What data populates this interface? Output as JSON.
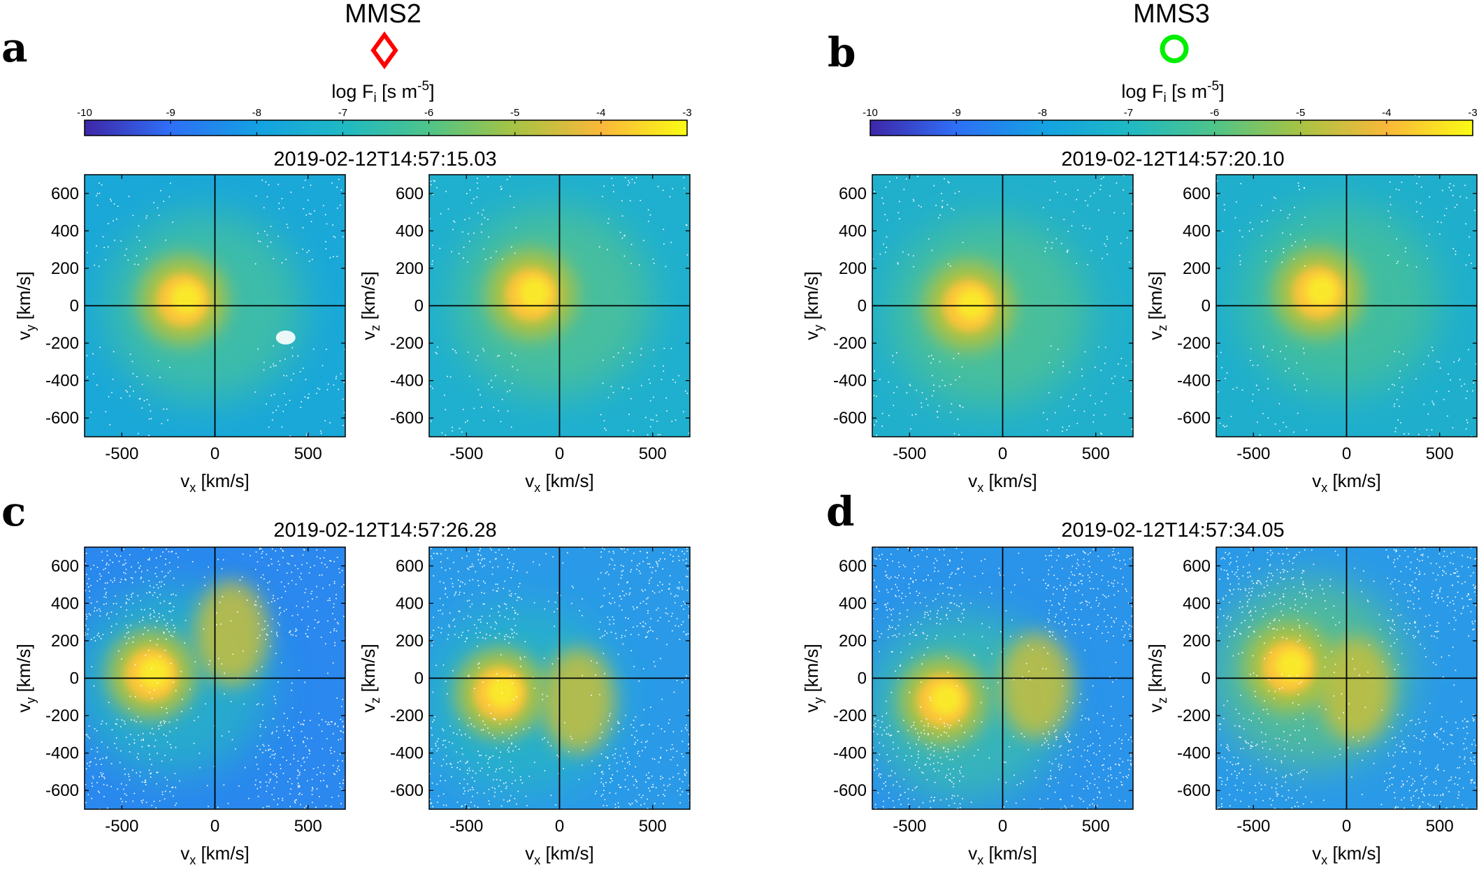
{
  "figure": {
    "panels": [
      {
        "letter": "a",
        "spacecraft": "MMS2",
        "marker": "red-diamond",
        "marker_color": "#ff0000",
        "colorbar_label": "log F",
        "colorbar_label_sub": "i",
        "colorbar_label_unit": " [s m",
        "colorbar_label_exp": "-5",
        "colorbar_label_close": "]",
        "timestamp": "2019-02-12T14:57:15.03"
      },
      {
        "letter": "b",
        "spacecraft": "MMS3",
        "marker": "green-circle",
        "marker_color": "#00ee00",
        "colorbar_label": "log F",
        "colorbar_label_sub": "i",
        "colorbar_label_unit": " [s m",
        "colorbar_label_exp": "-5",
        "colorbar_label_close": "]",
        "timestamp": "2019-02-12T14:57:20.10"
      },
      {
        "letter": "c",
        "timestamp": "2019-02-12T14:57:26.28"
      },
      {
        "letter": "d",
        "timestamp": "2019-02-12T14:57:34.05"
      }
    ],
    "colormap": [
      "#3e26a8",
      "#2f6ef6",
      "#13a2e2",
      "#2cc0a5",
      "#79c662",
      "#c5bf34",
      "#fdb93a",
      "#f9fb15"
    ]
  },
  "chart_data": [
    {
      "type": "colorbar",
      "panel": "a",
      "scale": "log",
      "range": [
        -10,
        -3
      ],
      "ticks": [
        "-10",
        "-9",
        "-8",
        "-7",
        "-6",
        "-5",
        "-4",
        "-3"
      ]
    },
    {
      "type": "colorbar",
      "panel": "b",
      "scale": "log",
      "range": [
        -10,
        -3
      ],
      "ticks": [
        "-10",
        "-9",
        "-8",
        "-7",
        "-6",
        "-5",
        "-4",
        "-3"
      ]
    },
    {
      "type": "heatmap",
      "panel": "a",
      "plot": "vx-vy",
      "xlabel": "v",
      "xlabel_sub": "x",
      "xlabel_unit": " [km/s]",
      "ylabel": "v",
      "ylabel_sub": "y",
      "ylabel_unit": " [km/s]",
      "xlim": [
        -700,
        700
      ],
      "ylim": [
        -700,
        700
      ],
      "xticks": [
        "-500",
        "0",
        "500"
      ],
      "yticks": [
        "-600",
        "-400",
        "-200",
        "0",
        "200",
        "400",
        "600"
      ],
      "peak": {
        "vx": -170,
        "vy": 30,
        "log_value": -3.0
      }
    },
    {
      "type": "heatmap",
      "panel": "a",
      "plot": "vx-vz",
      "xlabel": "v",
      "xlabel_sub": "x",
      "xlabel_unit": " [km/s]",
      "ylabel": "v",
      "ylabel_sub": "z",
      "ylabel_unit": " [km/s]",
      "xlim": [
        -700,
        700
      ],
      "ylim": [
        -700,
        700
      ],
      "xticks": [
        "-500",
        "0",
        "500"
      ],
      "yticks": [
        "-600",
        "-400",
        "-200",
        "0",
        "200",
        "400",
        "600"
      ],
      "peak": {
        "vx": -150,
        "vz": 60,
        "log_value": -3.0
      }
    },
    {
      "type": "heatmap",
      "panel": "b",
      "plot": "vx-vy",
      "xlabel": "v",
      "xlabel_sub": "x",
      "xlabel_unit": " [km/s]",
      "ylabel": "v",
      "ylabel_sub": "y",
      "ylabel_unit": " [km/s]",
      "xlim": [
        -700,
        700
      ],
      "ylim": [
        -700,
        700
      ],
      "xticks": [
        "-500",
        "0",
        "500"
      ],
      "yticks": [
        "-600",
        "-400",
        "-200",
        "0",
        "200",
        "400",
        "600"
      ],
      "peak": {
        "vx": -180,
        "vy": 0,
        "log_value": -3.0
      }
    },
    {
      "type": "heatmap",
      "panel": "b",
      "plot": "vx-vz",
      "xlabel": "v",
      "xlabel_sub": "x",
      "xlabel_unit": " [km/s]",
      "ylabel": "v",
      "ylabel_sub": "z",
      "ylabel_unit": " [km/s]",
      "xlim": [
        -700,
        700
      ],
      "ylim": [
        -700,
        700
      ],
      "xticks": [
        "-500",
        "0",
        "500"
      ],
      "yticks": [
        "-600",
        "-400",
        "-200",
        "0",
        "200",
        "400",
        "600"
      ],
      "peak": {
        "vx": -150,
        "vz": 70,
        "log_value": -3.0
      }
    },
    {
      "type": "heatmap",
      "panel": "c",
      "plot": "vx-vy",
      "xlabel": "v",
      "xlabel_sub": "x",
      "xlabel_unit": " [km/s]",
      "ylabel": "v",
      "ylabel_sub": "y",
      "ylabel_unit": " [km/s]",
      "xlim": [
        -700,
        700
      ],
      "ylim": [
        -700,
        700
      ],
      "xticks": [
        "-500",
        "0",
        "500"
      ],
      "yticks": [
        "-600",
        "-400",
        "-200",
        "0",
        "200",
        "400",
        "600"
      ],
      "peak": {
        "vx": -340,
        "vy": 20,
        "log_value": -3.2
      }
    },
    {
      "type": "heatmap",
      "panel": "c",
      "plot": "vx-vz",
      "xlabel": "v",
      "xlabel_sub": "x",
      "xlabel_unit": " [km/s]",
      "ylabel": "v",
      "ylabel_sub": "z",
      "ylabel_unit": " [km/s]",
      "xlim": [
        -700,
        700
      ],
      "ylim": [
        -700,
        700
      ],
      "xticks": [
        "-500",
        "0",
        "500"
      ],
      "yticks": [
        "-600",
        "-400",
        "-200",
        "0",
        "200",
        "400",
        "600"
      ],
      "peak": {
        "vx": -320,
        "vz": -80,
        "log_value": -3.5
      }
    },
    {
      "type": "heatmap",
      "panel": "d",
      "plot": "vx-vy",
      "xlabel": "v",
      "xlabel_sub": "x",
      "xlabel_unit": " [km/s]",
      "ylabel": "v",
      "ylabel_sub": "y",
      "ylabel_unit": " [km/s]",
      "xlim": [
        -700,
        700
      ],
      "ylim": [
        -700,
        700
      ],
      "xticks": [
        "-500",
        "0",
        "500"
      ],
      "yticks": [
        "-600",
        "-400",
        "-200",
        "0",
        "200",
        "400",
        "600"
      ],
      "peak": {
        "vx": -320,
        "vy": -120,
        "log_value": -3.6
      }
    },
    {
      "type": "heatmap",
      "panel": "d",
      "plot": "vx-vz",
      "xlabel": "v",
      "xlabel_sub": "x",
      "xlabel_unit": " [km/s]",
      "ylabel": "v",
      "ylabel_sub": "z",
      "ylabel_unit": " [km/s]",
      "xlim": [
        -700,
        700
      ],
      "ylim": [
        -700,
        700
      ],
      "xticks": [
        "-500",
        "0",
        "500"
      ],
      "yticks": [
        "-600",
        "-400",
        "-200",
        "0",
        "200",
        "400",
        "600"
      ],
      "peak": {
        "vx": -310,
        "vz": 60,
        "log_value": -3.6
      }
    }
  ]
}
